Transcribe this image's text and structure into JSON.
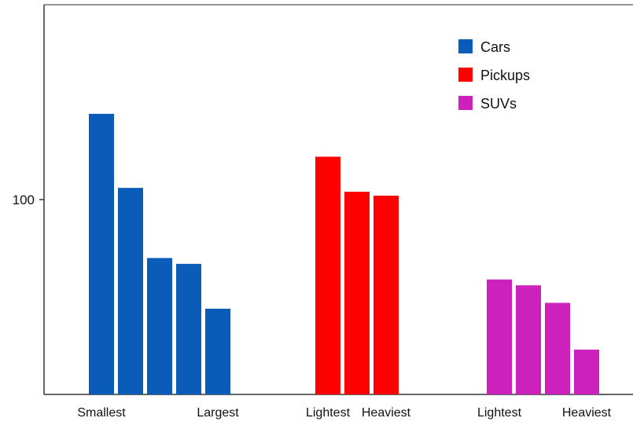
{
  "chart_data": {
    "type": "bar",
    "title": "",
    "xlabel": "",
    "ylabel": "",
    "ylim": [
      0,
      200
    ],
    "grid": false,
    "legend_position": "top-right",
    "y_ticks": [
      100
    ],
    "y_tick_labels": [
      "100"
    ],
    "groups": [
      {
        "series": "Cars",
        "values": [
          144,
          106,
          70,
          67,
          44
        ],
        "labels": [
          "Smallest",
          "",
          "",
          "",
          "Largest"
        ]
      },
      {
        "series": "Pickups",
        "values": [
          122,
          104,
          102
        ],
        "labels": [
          "Lightest",
          "",
          "Heaviest"
        ]
      },
      {
        "series": "SUVs",
        "values": [
          59,
          56,
          47,
          23
        ],
        "labels": [
          "Lightest",
          "",
          "",
          "Heaviest"
        ]
      }
    ],
    "series": [
      {
        "name": "Cars",
        "color": "#0B5CB8"
      },
      {
        "name": "Pickups",
        "color": "#FF0000"
      },
      {
        "name": "SUVs",
        "color": "#CC22BB"
      }
    ]
  }
}
